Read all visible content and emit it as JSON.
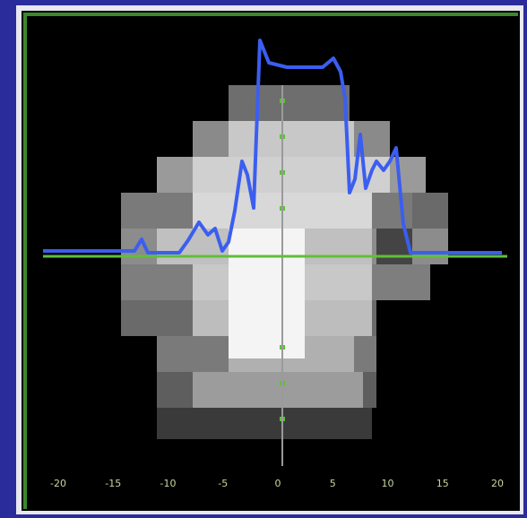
{
  "x_axis": {
    "tick_labels": [
      "-20",
      "-15",
      "-10",
      "-5",
      "0",
      "5",
      "10",
      "15",
      "20"
    ]
  }
}
